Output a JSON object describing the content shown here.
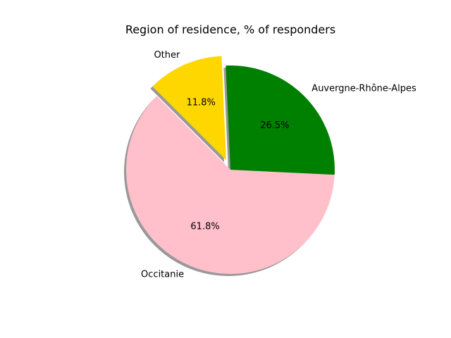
{
  "chart_data": {
    "type": "pie",
    "title": "Region of residence, % of responders",
    "categories": [
      "Occitanie",
      "Auvergne-Rhône-Alpes",
      "Other"
    ],
    "values": [
      61.8,
      26.5,
      11.8
    ],
    "value_labels": [
      "61.8%",
      "26.5%",
      "11.8%"
    ],
    "colors": [
      "pink",
      "green",
      "gold"
    ],
    "explode": [
      0,
      0,
      0.1
    ],
    "startangle": 135,
    "shadow": true
  }
}
